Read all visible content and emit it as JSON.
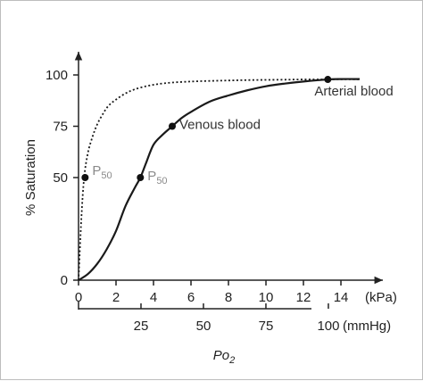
{
  "chart_data": {
    "type": "line",
    "ylabel": "% Saturation",
    "xlabel": "Po",
    "xlabel_subscript": "2",
    "x_unit_primary": "(kPa)",
    "x_unit_secondary": "(mmHg)",
    "xlim": [
      0,
      15
    ],
    "ylim": [
      0,
      100
    ],
    "y_ticks": [
      0,
      50,
      75,
      100
    ],
    "x_ticks_kpa": [
      0,
      2,
      4,
      6,
      8,
      10,
      12,
      14
    ],
    "x_ticks_mmhg": [
      25,
      50,
      75,
      100
    ],
    "grid": false,
    "series": [
      {
        "style": "dotted",
        "x": [
          0,
          0.15,
          0.3,
          0.5,
          0.75,
          1.0,
          1.3,
          1.6,
          2.0,
          2.5,
          3.0,
          3.6,
          4.2,
          5.0,
          6.0,
          7.0,
          8.0,
          9.0,
          10.0,
          11.0,
          12.0,
          13.0,
          14.0,
          15.0
        ],
        "y": [
          0,
          30,
          50,
          62,
          70,
          76,
          81,
          85,
          88,
          91,
          93,
          94.5,
          95.5,
          96.3,
          96.8,
          97.1,
          97.3,
          97.5,
          97.6,
          97.7,
          97.8,
          97.8,
          97.9,
          97.9
        ]
      },
      {
        "style": "solid",
        "x": [
          0,
          0.5,
          1.0,
          1.5,
          2.0,
          2.5,
          3.0,
          3.3,
          3.6,
          4.0,
          4.5,
          5.0,
          5.5,
          6.0,
          7.0,
          8.0,
          9.0,
          10.0,
          11.0,
          12.0,
          13.3,
          14.0,
          15.0
        ],
        "y": [
          0,
          3,
          8,
          15,
          24,
          36,
          45,
          50,
          57,
          66,
          71,
          75,
          79,
          82,
          87,
          90,
          92.5,
          94.5,
          95.8,
          96.8,
          97.8,
          98,
          98
        ]
      }
    ],
    "points": [
      {
        "label": "P",
        "label_subscript": "50",
        "x": 0.35,
        "y": 50,
        "label_side": "right",
        "label_color": "#8a8a8a"
      },
      {
        "label": "P",
        "label_subscript": "50",
        "x": 3.3,
        "y": 50,
        "label_side": "right",
        "label_color": "#8a8a8a"
      },
      {
        "label": "Venous blood",
        "label_subscript": "",
        "x": 5.0,
        "y": 75,
        "label_side": "right",
        "label_color": "#333333"
      },
      {
        "label": "Arterial blood",
        "label_subscript": "",
        "x": 13.3,
        "y": 97.8,
        "label_side": "below",
        "label_color": "#333333"
      }
    ]
  }
}
